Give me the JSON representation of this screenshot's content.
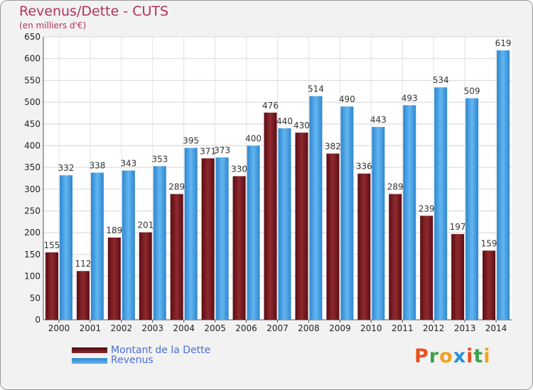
{
  "header": {
    "title": "Revenus/Dette - CUTS",
    "subtitle": "(en milliers d'€)"
  },
  "chart_data": {
    "type": "bar",
    "categories": [
      "2000",
      "2001",
      "2002",
      "2003",
      "2004",
      "2005",
      "2006",
      "2007",
      "2008",
      "2009",
      "2010",
      "2011",
      "2012",
      "2013",
      "2014"
    ],
    "series": [
      {
        "name": "Montant de la Dette",
        "values": [
          155,
          112,
          189,
          201,
          289,
          371,
          330,
          476,
          430,
          382,
          336,
          289,
          239,
          197,
          159
        ],
        "color": "#7a1f24"
      },
      {
        "name": "Revenus",
        "values": [
          332,
          338,
          343,
          353,
          395,
          373,
          400,
          440,
          514,
          490,
          443,
          493,
          534,
          509,
          619
        ],
        "color": "#4aa3e6"
      }
    ],
    "ylim": [
      0,
      650
    ],
    "yticks": [
      0,
      50,
      100,
      150,
      200,
      250,
      300,
      350,
      400,
      450,
      500,
      550,
      600,
      650
    ],
    "grid": true,
    "legend_position": "bottom-left"
  },
  "legend": {
    "debt_label": "Montant de la Dette",
    "revenue_label": "Revenus"
  },
  "logo": {
    "letters": [
      "P",
      "r",
      "o",
      "x",
      "i",
      "t",
      "i"
    ],
    "colors": [
      "#e8501e",
      "#3ca34a",
      "#f2a31c",
      "#2a8fd9",
      "#e8501e",
      "#3ca34a",
      "#f2a31c"
    ]
  }
}
